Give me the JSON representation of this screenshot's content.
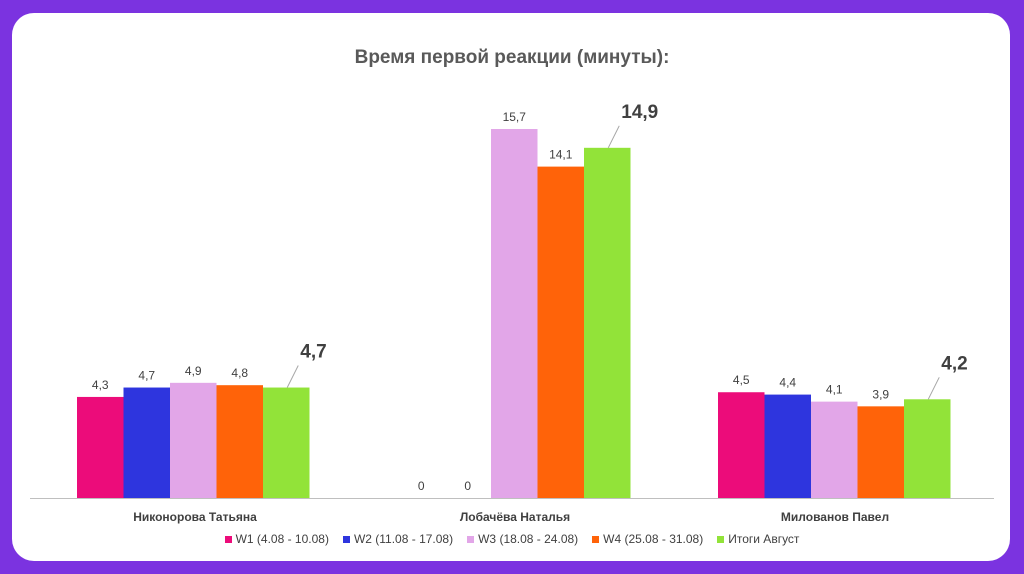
{
  "chart_data": {
    "type": "bar",
    "title": "Время первой реакции (минуты):",
    "categories": [
      "Никонорова Татьяна",
      "Лобачёва Наталья",
      "Милованов Павел"
    ],
    "series": [
      {
        "name": "W1 (4.08 - 10.08)",
        "color": "#ec0c7a",
        "values": [
          4.3,
          0,
          4.5
        ],
        "labels": [
          "4,3",
          "0",
          "4,5"
        ]
      },
      {
        "name": "W2 (11.08 - 17.08)",
        "color": "#2e35de",
        "values": [
          4.7,
          0,
          4.4
        ],
        "labels": [
          "4,7",
          "0",
          "4,4"
        ]
      },
      {
        "name": "W3 (18.08 - 24.08)",
        "color": "#e2a6e8",
        "values": [
          4.9,
          15.7,
          4.1
        ],
        "labels": [
          "4,9",
          "15,7",
          "4,1"
        ]
      },
      {
        "name": "W4 (25.08 - 31.08)",
        "color": "#ff6309",
        "values": [
          4.8,
          14.1,
          3.9
        ],
        "labels": [
          "4,8",
          "14,1",
          "3,9"
        ]
      },
      {
        "name": "Итоги Август",
        "color": "#92e339",
        "values": [
          4.7,
          14.9,
          4.2
        ],
        "labels": [
          "4,7",
          "14,9",
          "4,2"
        ],
        "emphasized": true
      }
    ],
    "ylim": [
      0,
      17
    ],
    "grid": false,
    "legend": "bottom"
  }
}
